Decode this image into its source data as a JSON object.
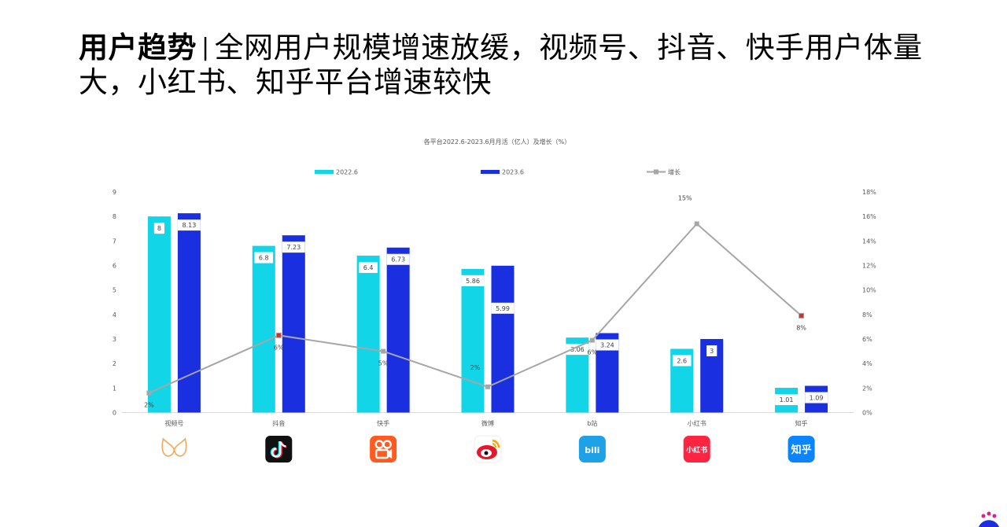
{
  "headline": {
    "bold": "用户趋势",
    "separator": "|",
    "text": "全网用户规模增速放缓，视频号、抖音、快手用户体量大，小红书、知乎平台增速较快"
  },
  "chart_data": {
    "type": "bar",
    "title": "各平台2022.6-2023.6月月活（亿人）及增长（%）",
    "categories": [
      "视频号",
      "抖音",
      "快手",
      "微博",
      "b站",
      "小红书",
      "知乎"
    ],
    "series": [
      {
        "name": "2022.6",
        "type": "bar",
        "color": "#12d6e8",
        "values": [
          8,
          6.8,
          6.4,
          5.86,
          3.06,
          2.6,
          1.01
        ]
      },
      {
        "name": "2023.6",
        "type": "bar",
        "color": "#1a2fe0",
        "values": [
          8.13,
          7.23,
          6.73,
          5.99,
          3.24,
          3,
          1.09
        ]
      },
      {
        "name": "增长",
        "type": "line",
        "axis": "right",
        "color": "#a6a6a6",
        "values": [
          1.6,
          6.3,
          5.0,
          2.1,
          5.9,
          15.4,
          7.9
        ],
        "labels": [
          "2%",
          "6%",
          "5%",
          "2%",
          "6%",
          "15%",
          "8%"
        ]
      }
    ],
    "y_left": {
      "ylim": [
        0,
        9
      ],
      "ticks": [
        "0",
        "1",
        "2",
        "3",
        "4",
        "5",
        "6",
        "7",
        "8",
        "9"
      ]
    },
    "y_right": {
      "ylim": [
        0,
        18
      ],
      "ticks": [
        "0%",
        "2%",
        "4%",
        "6%",
        "8%",
        "10%",
        "12%",
        "14%",
        "16%",
        "18%"
      ]
    },
    "legend_position": "top",
    "grid": false
  },
  "platform_icons": [
    "wechat-channels-icon",
    "douyin-icon",
    "kuaishou-icon",
    "weibo-icon",
    "bilibili-icon",
    "xiaohongshu-icon",
    "zhihu-icon"
  ],
  "icon_texts": {
    "bilibili": "bili",
    "xiaohongshu": "小红书",
    "zhihu": "知乎"
  }
}
